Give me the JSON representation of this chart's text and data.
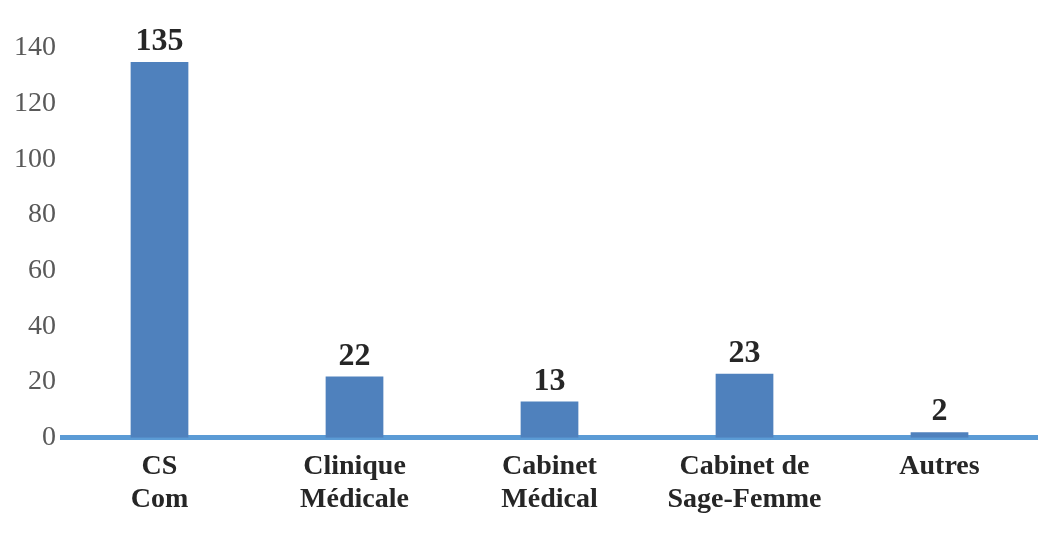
{
  "chart_data": {
    "type": "bar",
    "categories": [
      "CS Com",
      "Clinique Médicale",
      "Cabinet Médical",
      "Cabinet de Sage-Femme",
      "Autres"
    ],
    "values": [
      135,
      22,
      13,
      23,
      2
    ],
    "color": "#4f81bd",
    "ylim": [
      0,
      140
    ],
    "yticks": [
      0,
      20,
      40,
      60,
      80,
      100,
      120,
      140
    ],
    "grid": false,
    "legend": false,
    "data_labels": true
  }
}
